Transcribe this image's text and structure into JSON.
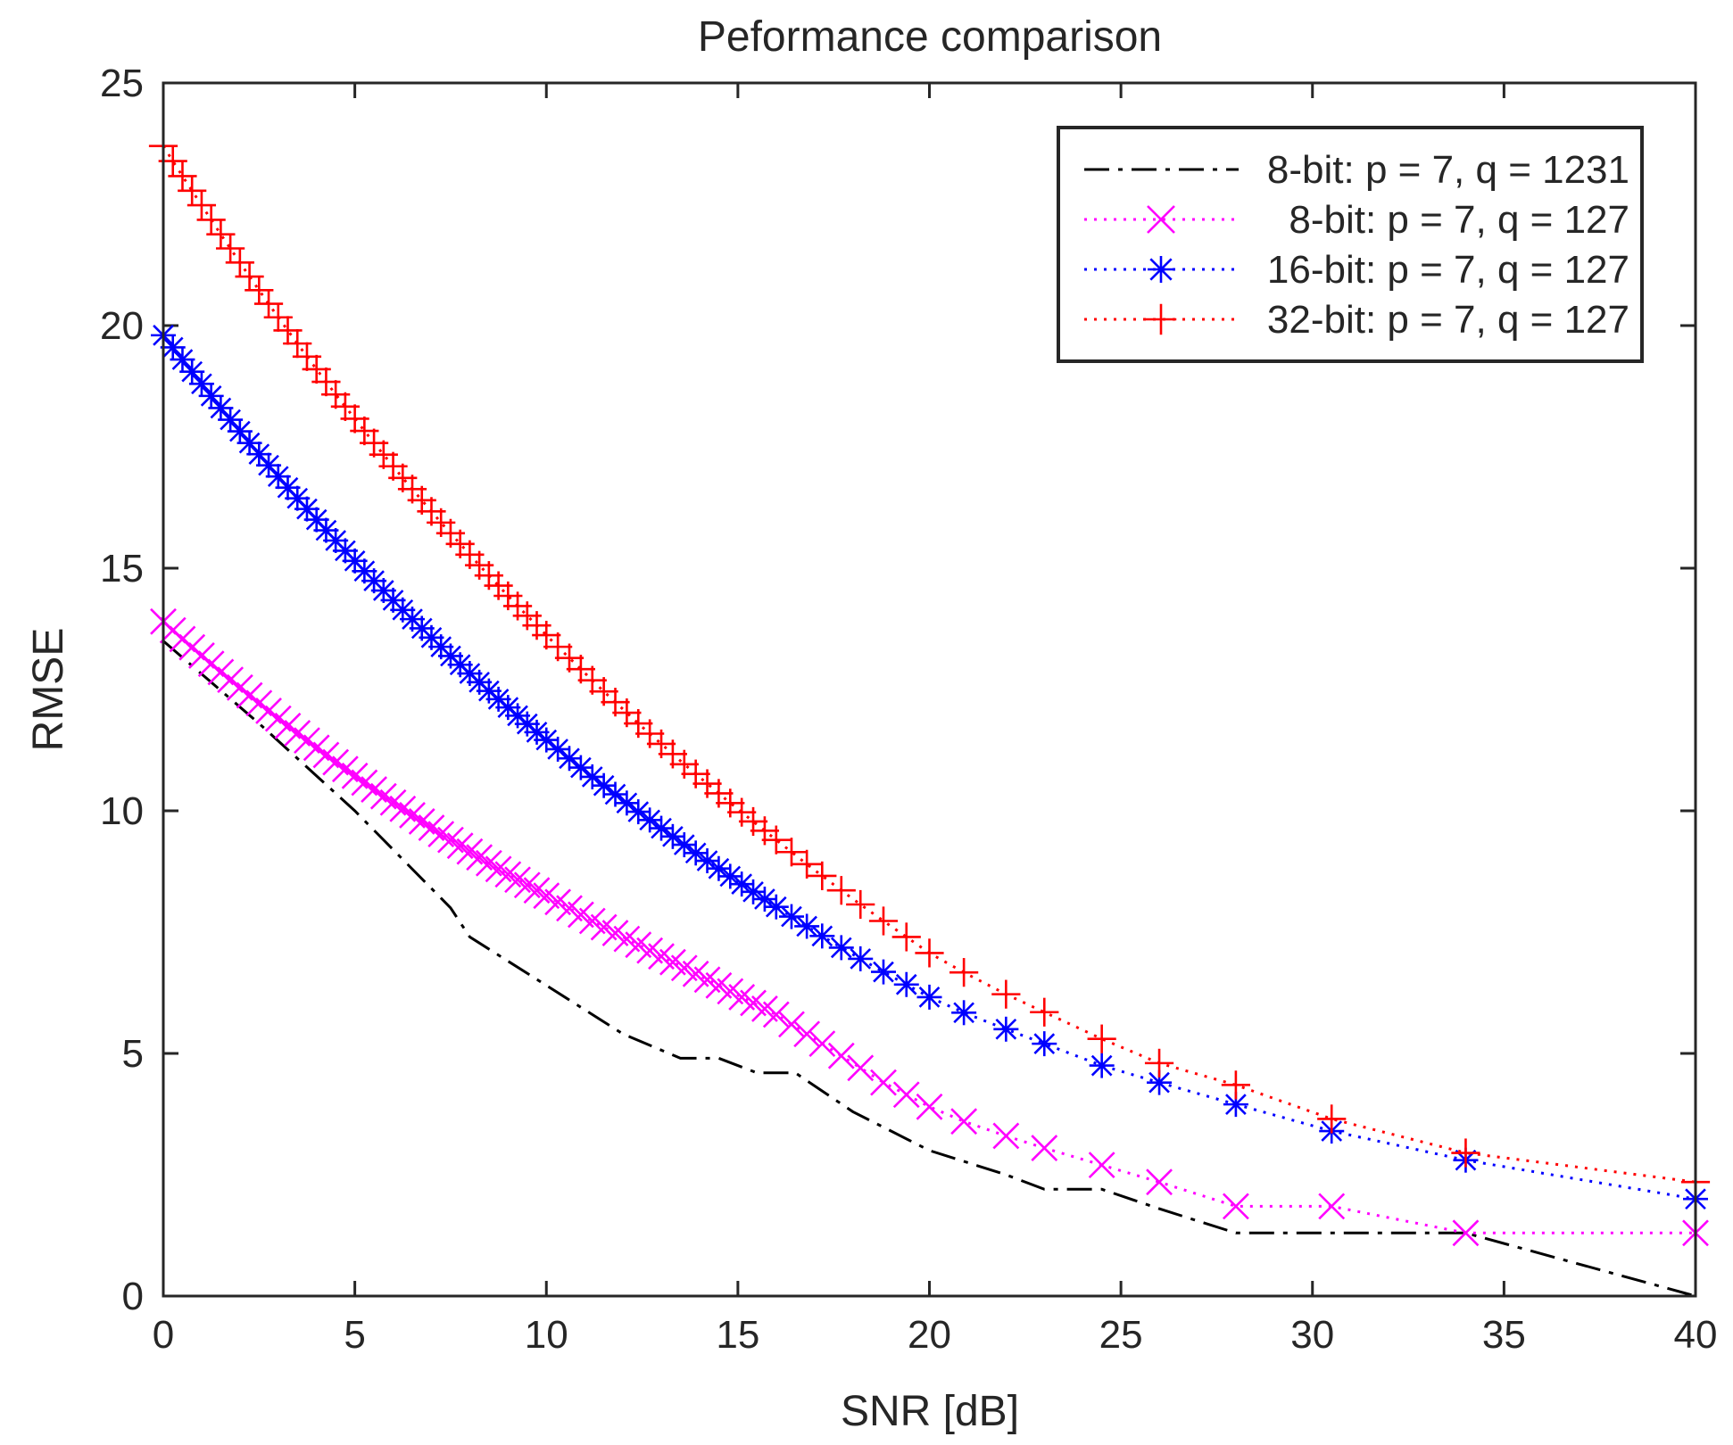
{
  "chart_data": {
    "type": "line",
    "title": "Peformance comparison",
    "xlabel": "SNR [dB]",
    "ylabel": "RMSE",
    "xlim": [
      0,
      40
    ],
    "ylim": [
      0,
      25
    ],
    "xticks": [
      0,
      5,
      10,
      15,
      20,
      25,
      30,
      35,
      40
    ],
    "yticks": [
      0,
      5,
      10,
      15,
      20,
      25
    ],
    "grid": false,
    "legend_position": "top-right",
    "series": [
      {
        "name": "8-bit: p = 7, q = 1231",
        "color": "#000000",
        "line_style": "dashdot",
        "marker": "none",
        "x": [
          0,
          2.5,
          5,
          7.5,
          8,
          10,
          12,
          13.5,
          14.5,
          15.5,
          16.5,
          18,
          20,
          22,
          23,
          24.5,
          26,
          28,
          30.5,
          34,
          40
        ],
        "y": [
          13.5,
          11.8,
          10.0,
          8.0,
          7.4,
          6.4,
          5.4,
          4.9,
          4.9,
          4.6,
          4.6,
          3.8,
          3.0,
          2.5,
          2.2,
          2.2,
          1.8,
          1.3,
          1.3,
          1.3,
          0
        ]
      },
      {
        "name": "8-bit: p = 7, q = 127",
        "color": "#ff00ff",
        "line_style": "dotted",
        "marker": "x",
        "x": [
          0,
          0.25,
          0.5,
          0.75,
          1,
          1.25,
          1.5,
          1.75,
          2,
          2.25,
          2.5,
          2.75,
          3,
          3.25,
          3.5,
          3.75,
          4,
          4.25,
          4.5,
          4.75,
          5,
          5.25,
          5.5,
          5.75,
          6,
          6.25,
          6.5,
          6.75,
          7,
          7.25,
          7.5,
          7.75,
          8,
          8.25,
          8.5,
          8.75,
          9,
          9.25,
          9.5,
          9.75,
          10,
          10.3,
          10.6,
          10.9,
          11.2,
          11.5,
          11.8,
          12.1,
          12.4,
          12.7,
          13,
          13.3,
          13.6,
          13.9,
          14.2,
          14.5,
          14.8,
          15.1,
          15.4,
          15.7,
          16,
          16.4,
          16.8,
          17.2,
          17.7,
          18.2,
          18.8,
          19.4,
          20,
          20.9,
          22,
          23,
          24.5,
          26,
          28,
          30.5,
          34,
          40
        ],
        "y": [
          13.9,
          13.72,
          13.54,
          13.37,
          13.2,
          13.03,
          12.86,
          12.7,
          12.54,
          12.38,
          12.22,
          12.06,
          11.9,
          11.75,
          11.6,
          11.45,
          11.3,
          11.15,
          11.0,
          10.86,
          10.72,
          10.58,
          10.44,
          10.3,
          10.17,
          10.04,
          9.91,
          9.78,
          9.65,
          9.52,
          9.4,
          9.28,
          9.16,
          9.04,
          8.92,
          8.8,
          8.69,
          8.58,
          8.47,
          8.36,
          8.25,
          8.12,
          7.99,
          7.86,
          7.73,
          7.6,
          7.48,
          7.36,
          7.24,
          7.12,
          7.0,
          6.88,
          6.76,
          6.64,
          6.52,
          6.4,
          6.28,
          6.16,
          6.04,
          5.92,
          5.8,
          5.6,
          5.4,
          5.2,
          4.95,
          4.7,
          4.4,
          4.15,
          3.9,
          3.6,
          3.3,
          3.05,
          2.7,
          2.35,
          1.85,
          1.85,
          1.3,
          1.3
        ]
      },
      {
        "name": "16-bit: p = 7, q = 127",
        "color": "#0000ff",
        "line_style": "dotted",
        "marker": "asterisk",
        "x": [
          0,
          0.25,
          0.5,
          0.75,
          1,
          1.25,
          1.5,
          1.75,
          2,
          2.25,
          2.5,
          2.75,
          3,
          3.25,
          3.5,
          3.75,
          4,
          4.25,
          4.5,
          4.75,
          5,
          5.25,
          5.5,
          5.75,
          6,
          6.25,
          6.5,
          6.75,
          7,
          7.25,
          7.5,
          7.75,
          8,
          8.25,
          8.5,
          8.75,
          9,
          9.25,
          9.5,
          9.75,
          10,
          10.3,
          10.6,
          10.9,
          11.2,
          11.5,
          11.8,
          12.1,
          12.4,
          12.7,
          13,
          13.3,
          13.6,
          13.9,
          14.2,
          14.5,
          14.8,
          15.1,
          15.4,
          15.7,
          16,
          16.4,
          16.8,
          17.2,
          17.7,
          18.2,
          18.8,
          19.4,
          20,
          20.9,
          22,
          23,
          24.5,
          26,
          28,
          30.5,
          34,
          40
        ],
        "y": [
          19.8,
          19.55,
          19.3,
          19.05,
          18.8,
          18.55,
          18.3,
          18.06,
          17.82,
          17.58,
          17.35,
          17.12,
          16.89,
          16.66,
          16.44,
          16.22,
          16.0,
          15.78,
          15.57,
          15.36,
          15.15,
          14.94,
          14.74,
          14.54,
          14.34,
          14.14,
          13.95,
          13.76,
          13.57,
          13.38,
          13.19,
          13.01,
          12.83,
          12.65,
          12.47,
          12.3,
          12.13,
          11.96,
          11.79,
          11.62,
          11.46,
          11.27,
          11.08,
          10.89,
          10.7,
          10.52,
          10.34,
          10.16,
          9.98,
          9.81,
          9.64,
          9.47,
          9.3,
          9.13,
          8.97,
          8.81,
          8.65,
          8.49,
          8.33,
          8.18,
          8.02,
          7.82,
          7.62,
          7.42,
          7.18,
          6.95,
          6.68,
          6.42,
          6.16,
          5.84,
          5.5,
          5.2,
          4.75,
          4.4,
          3.95,
          3.4,
          2.8,
          2.0
        ]
      },
      {
        "name": "32-bit: p = 7, q = 127",
        "color": "#ff0000",
        "line_style": "dotted",
        "marker": "plus",
        "x": [
          0,
          0.25,
          0.5,
          0.75,
          1,
          1.25,
          1.5,
          1.75,
          2,
          2.25,
          2.5,
          2.75,
          3,
          3.25,
          3.5,
          3.75,
          4,
          4.25,
          4.5,
          4.75,
          5,
          5.25,
          5.5,
          5.75,
          6,
          6.25,
          6.5,
          6.75,
          7,
          7.25,
          7.5,
          7.75,
          8,
          8.25,
          8.5,
          8.75,
          9,
          9.25,
          9.5,
          9.75,
          10,
          10.3,
          10.6,
          10.9,
          11.2,
          11.5,
          11.8,
          12.1,
          12.4,
          12.7,
          13,
          13.3,
          13.6,
          13.9,
          14.2,
          14.5,
          14.8,
          15.1,
          15.4,
          15.7,
          16,
          16.4,
          16.8,
          17.2,
          17.7,
          18.2,
          18.8,
          19.4,
          20,
          20.9,
          22,
          23,
          24.5,
          26,
          28,
          30.5,
          34,
          40
        ],
        "y": [
          23.7,
          23.39,
          23.08,
          22.78,
          22.48,
          22.18,
          21.88,
          21.59,
          21.3,
          21.01,
          20.73,
          20.45,
          20.17,
          19.9,
          19.63,
          19.36,
          19.1,
          18.84,
          18.58,
          18.33,
          18.08,
          17.83,
          17.58,
          17.34,
          17.1,
          16.86,
          16.63,
          16.4,
          16.17,
          15.94,
          15.72,
          15.5,
          15.28,
          15.06,
          14.85,
          14.64,
          14.43,
          14.22,
          14.02,
          13.82,
          13.62,
          13.38,
          13.15,
          12.92,
          12.69,
          12.46,
          12.24,
          12.02,
          11.8,
          11.59,
          11.38,
          11.17,
          10.96,
          10.76,
          10.56,
          10.36,
          10.16,
          9.97,
          9.78,
          9.59,
          9.4,
          9.15,
          8.9,
          8.66,
          8.36,
          8.07,
          7.73,
          7.4,
          7.07,
          6.67,
          6.22,
          5.85,
          5.3,
          4.8,
          4.35,
          3.65,
          2.95,
          2.35
        ]
      }
    ]
  }
}
